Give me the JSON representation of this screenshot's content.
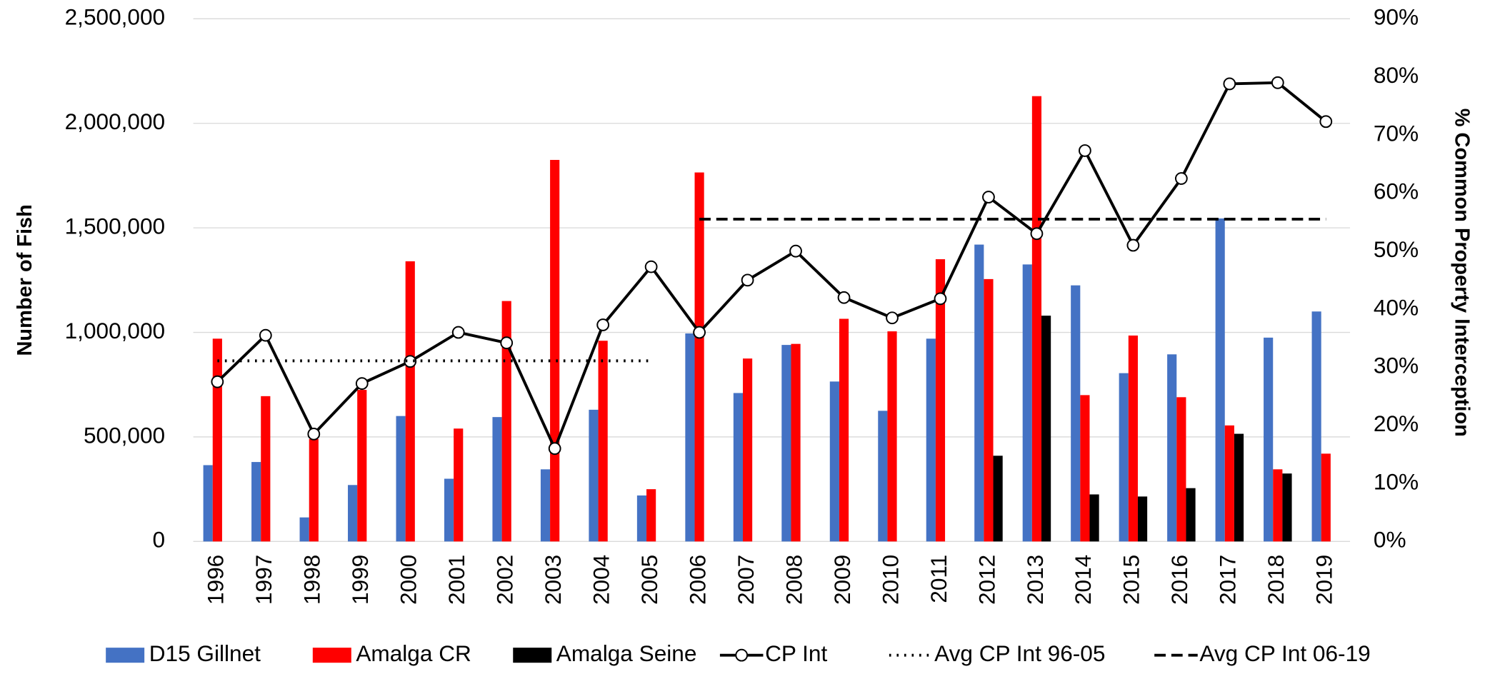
{
  "chart_data": {
    "type": "bar",
    "y_label": "Number of Fish",
    "y2_label": "% Common Property Interception",
    "categories": [
      "1996",
      "1997",
      "1998",
      "1999",
      "2000",
      "2001",
      "2002",
      "2003",
      "2004",
      "2005",
      "2006",
      "2007",
      "2008",
      "2009",
      "2010",
      "2011",
      "2012",
      "2013",
      "2014",
      "2015",
      "2016",
      "2017",
      "2018",
      "2019"
    ],
    "ylim": [
      0,
      2500000
    ],
    "yticks": [
      0,
      {
        "value": 500000,
        "label": "500,000"
      },
      {
        "value": 1000000,
        "label": "1,000,000"
      },
      {
        "value": 1500000,
        "label": "1,500,000"
      },
      {
        "value": 2000000,
        "label": "2,000,000"
      },
      {
        "value": 2500000,
        "label": "2,500,000"
      }
    ],
    "y2lim": [
      0,
      90
    ],
    "y2ticks": [
      {
        "value": 0,
        "label": "0%"
      },
      {
        "value": 10,
        "label": "10%"
      },
      {
        "value": 20,
        "label": "20%"
      },
      {
        "value": 30,
        "label": "30%"
      },
      {
        "value": 40,
        "label": "40%"
      },
      {
        "value": 50,
        "label": "50%"
      },
      {
        "value": 60,
        "label": "60%"
      },
      {
        "value": 70,
        "label": "70%"
      },
      {
        "value": 80,
        "label": "80%"
      },
      {
        "value": 90,
        "label": "90%"
      }
    ],
    "grid": true,
    "legend": "bottom",
    "series": [
      {
        "name": "D15 Gillnet",
        "type": "bar",
        "color": "#4472c4",
        "values": [
          365000,
          380000,
          115000,
          270000,
          600000,
          300000,
          595000,
          345000,
          630000,
          220000,
          995000,
          710000,
          940000,
          765000,
          625000,
          970000,
          1420000,
          1325000,
          1225000,
          805000,
          895000,
          1545000,
          975000,
          1100000
        ]
      },
      {
        "name": "Amalga CR",
        "type": "bar",
        "color": "#ff0000",
        "values": [
          970000,
          695000,
          490000,
          725000,
          1340000,
          540000,
          1150000,
          1825000,
          960000,
          250000,
          1765000,
          875000,
          945000,
          1065000,
          1005000,
          1350000,
          1255000,
          2130000,
          700000,
          985000,
          690000,
          555000,
          345000,
          420000
        ]
      },
      {
        "name": "Amalga Seine",
        "type": "bar",
        "color": "#000000",
        "values": [
          null,
          null,
          null,
          null,
          null,
          null,
          null,
          null,
          null,
          null,
          null,
          null,
          null,
          null,
          null,
          null,
          410000,
          1080000,
          225000,
          215000,
          255000,
          515000,
          325000,
          null
        ]
      },
      {
        "name": "CP Int",
        "type": "line",
        "axis": "y2",
        "color": "#000000",
        "marker": "circle",
        "dash": "solid",
        "values": [
          27.5,
          35.5,
          18.5,
          27.2,
          31,
          36,
          34.2,
          16,
          37.3,
          47.3,
          36,
          45,
          50,
          42,
          38.5,
          41.8,
          59.3,
          53,
          67.3,
          51,
          62.5,
          78.8,
          79,
          72.3
        ]
      },
      {
        "name": "Avg CP Int 96-05",
        "type": "line",
        "axis": "y2",
        "color": "#000000",
        "dash": "dotted",
        "values": [
          31.1,
          31.1,
          31.1,
          31.1,
          31.1,
          31.1,
          31.1,
          31.1,
          31.1,
          31.1,
          null,
          null,
          null,
          null,
          null,
          null,
          null,
          null,
          null,
          null,
          null,
          null,
          null,
          null
        ]
      },
      {
        "name": "Avg CP Int 06-19",
        "type": "line",
        "axis": "y2",
        "color": "#000000",
        "dash": "dashed",
        "values": [
          null,
          null,
          null,
          null,
          null,
          null,
          null,
          null,
          null,
          null,
          55.5,
          55.5,
          55.5,
          55.5,
          55.5,
          55.5,
          55.5,
          55.5,
          55.5,
          55.5,
          55.5,
          55.5,
          55.5,
          55.5
        ]
      }
    ]
  }
}
